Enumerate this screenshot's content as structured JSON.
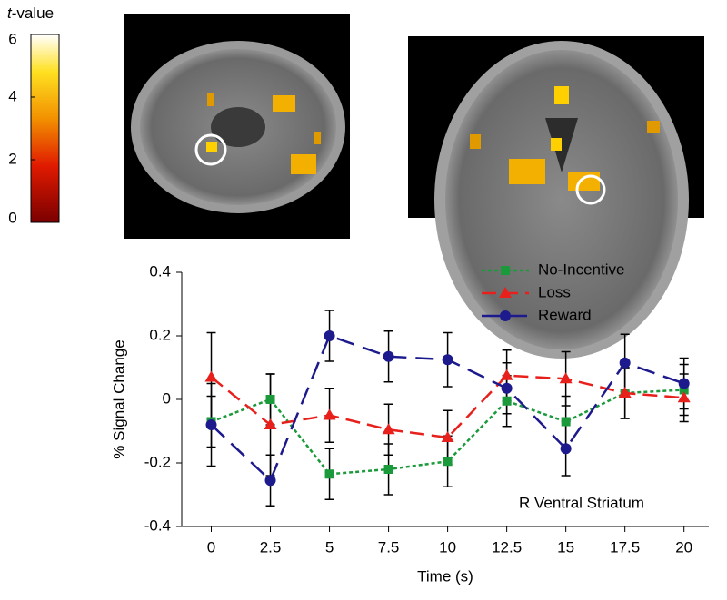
{
  "colorbar": {
    "label_var": "t",
    "label_rest": "-value",
    "lim": [
      0,
      6
    ],
    "ticks": [
      0,
      2,
      4,
      6
    ]
  },
  "chart_data": {
    "type": "line",
    "x": [
      0,
      2.5,
      5,
      7.5,
      10,
      12.5,
      15,
      17.5,
      20
    ],
    "xlabel": "Time (s)",
    "ylabel": "% Signal Change",
    "annotation": "R Ventral Striatum",
    "xlim": [
      -1.25,
      21.05
    ],
    "ylim": [
      -0.4,
      0.4
    ],
    "xticks": [
      0,
      2.5,
      5,
      7.5,
      10,
      12.5,
      15,
      17.5,
      20
    ],
    "yticks": [
      -0.4,
      -0.2,
      0,
      0.2,
      0.4
    ],
    "grid": false,
    "legend": "upper right",
    "series": [
      {
        "name": "No-Incentive",
        "color": "#1a9a3a",
        "marker": "square",
        "dash": "4 3",
        "values": [
          -0.07,
          0.0,
          -0.235,
          -0.22,
          -0.195,
          -0.005,
          -0.07,
          0.02,
          0.03
        ],
        "errors": [
          0.08,
          0.08,
          0.08,
          0.08,
          0.08,
          0.08,
          0.08,
          0.08,
          0.08
        ]
      },
      {
        "name": "Loss",
        "color": "#e8201c",
        "marker": "triangle",
        "dash": "16 8",
        "values": [
          0.07,
          -0.08,
          -0.05,
          -0.095,
          -0.12,
          0.075,
          0.065,
          0.02,
          0.005
        ],
        "errors": [
          0.14,
          0.16,
          0.085,
          0.08,
          0.085,
          0.08,
          0.085,
          0.08,
          0.075
        ]
      },
      {
        "name": "Reward",
        "color": "#1c1a8c",
        "marker": "circle",
        "dash": "20 10",
        "values": [
          -0.08,
          -0.255,
          0.2,
          0.135,
          0.125,
          0.035,
          -0.155,
          0.115,
          0.05
        ],
        "errors": [
          0.13,
          0.08,
          0.08,
          0.08,
          0.085,
          0.08,
          0.085,
          0.09,
          0.08
        ]
      }
    ]
  }
}
